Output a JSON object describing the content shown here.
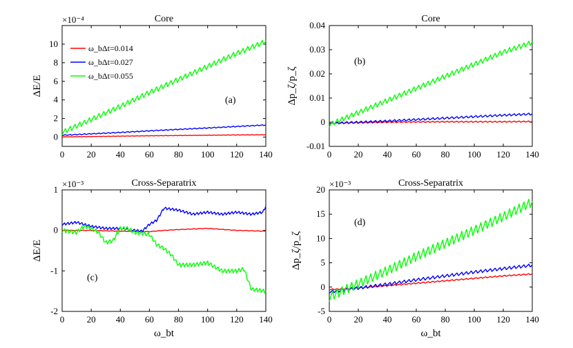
{
  "colors": {
    "red": "#ff0000",
    "blue": "#0000ff",
    "green": "#00ff00"
  },
  "chart_data": [
    {
      "type": "line",
      "title": "Core",
      "ylabel": "ΔE/E",
      "xlabel": "",
      "exponent": "×10⁻⁴",
      "annotation": "(a)",
      "xlim": [
        0,
        140
      ],
      "ylim": [
        -1,
        12
      ],
      "xticks": [
        0,
        20,
        40,
        60,
        80,
        100,
        120,
        140
      ],
      "yticks": [
        0,
        2,
        4,
        6,
        8,
        10
      ],
      "xtick_labels": [
        "0",
        "20",
        "40",
        "60",
        "80",
        "100",
        "120",
        "140"
      ],
      "ytick_labels": [
        "0",
        "2",
        "4",
        "6",
        "8",
        "10"
      ],
      "legend": [
        "ω_bΔt=0.014",
        "ω_bΔt=0.027",
        "ω_bΔt=0.055"
      ],
      "series": [
        {
          "name": "ω_bΔt=0.014",
          "color": "#ff0000",
          "points": [
            [
              0,
              0.02
            ],
            [
              20,
              0.06
            ],
            [
              40,
              0.1
            ],
            [
              60,
              0.14
            ],
            [
              80,
              0.17
            ],
            [
              100,
              0.2
            ],
            [
              120,
              0.23
            ],
            [
              140,
              0.25
            ]
          ],
          "osc_amp": 0.03,
          "osc_period": 3.3
        },
        {
          "name": "ω_bΔt=0.027",
          "color": "#0000ff",
          "points": [
            [
              0,
              0.2
            ],
            [
              20,
              0.35
            ],
            [
              40,
              0.5
            ],
            [
              60,
              0.67
            ],
            [
              80,
              0.83
            ],
            [
              100,
              0.98
            ],
            [
              120,
              1.14
            ],
            [
              140,
              1.3
            ]
          ],
          "osc_amp": 0.08,
          "osc_period": 3.3
        },
        {
          "name": "ω_bΔt=0.055",
          "color": "#00ff00",
          "points": [
            [
              0,
              0.5
            ],
            [
              20,
              1.9
            ],
            [
              40,
              3.3
            ],
            [
              60,
              4.8
            ],
            [
              80,
              6.2
            ],
            [
              100,
              7.6
            ],
            [
              120,
              9.0
            ],
            [
              140,
              10.3
            ]
          ],
          "osc_amp": 0.45,
          "osc_period": 3.3
        }
      ]
    },
    {
      "type": "line",
      "title": "Core",
      "ylabel": "Δp_ζ/p_ζ",
      "xlabel": "",
      "exponent": "",
      "annotation": "(b)",
      "xlim": [
        0,
        140
      ],
      "ylim": [
        -0.01,
        0.04
      ],
      "xticks": [
        0,
        20,
        40,
        60,
        80,
        100,
        120,
        140
      ],
      "yticks": [
        -0.01,
        0,
        0.01,
        0.02,
        0.03,
        0.04
      ],
      "xtick_labels": [
        "0",
        "20",
        "40",
        "60",
        "80",
        "100",
        "120",
        "140"
      ],
      "ytick_labels": [
        "-0.01",
        "0",
        "0.01",
        "0.02",
        "0.03",
        "0.04"
      ],
      "series": [
        {
          "name": "ω_bΔt=0.014",
          "color": "#ff0000",
          "points": [
            [
              0,
              -0.0005
            ],
            [
              20,
              -0.0002
            ],
            [
              40,
              0.0
            ],
            [
              60,
              0.0001
            ],
            [
              80,
              0.0002
            ],
            [
              100,
              0.0002
            ],
            [
              120,
              0.0002
            ],
            [
              140,
              0.0003
            ]
          ],
          "osc_amp": 0.0004,
          "osc_period": 3.3
        },
        {
          "name": "ω_bΔt=0.027",
          "color": "#0000ff",
          "points": [
            [
              0,
              -0.0004
            ],
            [
              20,
              0.0
            ],
            [
              40,
              0.0005
            ],
            [
              60,
              0.0011
            ],
            [
              80,
              0.0017
            ],
            [
              100,
              0.0023
            ],
            [
              120,
              0.0029
            ],
            [
              140,
              0.0034
            ]
          ],
          "osc_amp": 0.0007,
          "osc_period": 3.3
        },
        {
          "name": "ω_bΔt=0.055",
          "color": "#00ff00",
          "points": [
            [
              0,
              -0.001
            ],
            [
              20,
              0.004
            ],
            [
              40,
              0.009
            ],
            [
              60,
              0.014
            ],
            [
              80,
              0.019
            ],
            [
              100,
              0.024
            ],
            [
              120,
              0.029
            ],
            [
              140,
              0.033
            ]
          ],
          "osc_amp": 0.0017,
          "osc_period": 3.3
        }
      ]
    },
    {
      "type": "line",
      "title": "Cross-Separatrix",
      "ylabel": "ΔE/E",
      "xlabel": "ω_bt",
      "exponent": "×10⁻³",
      "annotation": "(c)",
      "xlim": [
        0,
        140
      ],
      "ylim": [
        -2,
        1
      ],
      "xticks": [
        0,
        20,
        40,
        60,
        80,
        100,
        120,
        140
      ],
      "yticks": [
        -2,
        -1,
        0,
        1
      ],
      "xtick_labels": [
        "0",
        "20",
        "40",
        "60",
        "80",
        "100",
        "120",
        "140"
      ],
      "ytick_labels": [
        "-2",
        "-1",
        "0",
        "1"
      ],
      "series": [
        {
          "name": "ω_bΔt=0.014",
          "color": "#ff0000",
          "points": [
            [
              0,
              0.0
            ],
            [
              20,
              0.0
            ],
            [
              40,
              -0.02
            ],
            [
              60,
              -0.03
            ],
            [
              70,
              0.0
            ],
            [
              80,
              0.02
            ],
            [
              100,
              0.05
            ],
            [
              120,
              0.0
            ],
            [
              140,
              -0.02
            ]
          ],
          "osc_amp": 0.01,
          "osc_period": 4.0
        },
        {
          "name": "ω_bΔt=0.027",
          "color": "#0000ff",
          "points": [
            [
              0,
              0.15
            ],
            [
              10,
              0.2
            ],
            [
              20,
              0.1
            ],
            [
              30,
              0.05
            ],
            [
              40,
              0.05
            ],
            [
              50,
              0.0
            ],
            [
              55,
              -0.02
            ],
            [
              60,
              0.15
            ],
            [
              65,
              0.25
            ],
            [
              70,
              0.55
            ],
            [
              80,
              0.5
            ],
            [
              90,
              0.4
            ],
            [
              100,
              0.45
            ],
            [
              110,
              0.4
            ],
            [
              120,
              0.45
            ],
            [
              130,
              0.4
            ],
            [
              138,
              0.45
            ],
            [
              140,
              0.6
            ]
          ],
          "osc_amp": 0.05,
          "osc_period": 2.4
        },
        {
          "name": "ω_bΔt=0.055",
          "color": "#00ff00",
          "points": [
            [
              0,
              0.0
            ],
            [
              10,
              -0.05
            ],
            [
              15,
              0.1
            ],
            [
              20,
              0.05
            ],
            [
              25,
              -0.05
            ],
            [
              30,
              -0.3
            ],
            [
              35,
              -0.25
            ],
            [
              40,
              0.05
            ],
            [
              45,
              0.05
            ],
            [
              50,
              -0.05
            ],
            [
              60,
              -0.1
            ],
            [
              65,
              -0.35
            ],
            [
              70,
              -0.45
            ],
            [
              75,
              -0.6
            ],
            [
              80,
              -0.85
            ],
            [
              90,
              -0.85
            ],
            [
              100,
              -0.8
            ],
            [
              110,
              -1.0
            ],
            [
              120,
              -1.0
            ],
            [
              125,
              -0.95
            ],
            [
              130,
              -1.45
            ],
            [
              140,
              -1.5
            ]
          ],
          "osc_amp": 0.08,
          "osc_period": 2.4
        }
      ]
    },
    {
      "type": "line",
      "title": "Cross-Separatrix",
      "ylabel": "Δp_ζ/p_ζ",
      "xlabel": "ω_bt",
      "exponent": "×10⁻³",
      "annotation": "(d)",
      "xlim": [
        0,
        140
      ],
      "ylim": [
        -5,
        20
      ],
      "xticks": [
        0,
        20,
        40,
        60,
        80,
        100,
        120,
        140
      ],
      "yticks": [
        -5,
        0,
        5,
        10,
        15,
        20
      ],
      "xtick_labels": [
        "0",
        "20",
        "40",
        "60",
        "80",
        "100",
        "120",
        "140"
      ],
      "ytick_labels": [
        "-5",
        "0",
        "5",
        "10",
        "15",
        "20"
      ],
      "series": [
        {
          "name": "ω_bΔt=0.014",
          "color": "#ff0000",
          "points": [
            [
              0,
              -0.5
            ],
            [
              20,
              -0.2
            ],
            [
              40,
              0.3
            ],
            [
              60,
              0.8
            ],
            [
              80,
              1.3
            ],
            [
              100,
              1.8
            ],
            [
              120,
              2.3
            ],
            [
              140,
              2.7
            ]
          ],
          "osc_amp": 0.2,
          "osc_period": 3.3
        },
        {
          "name": "ω_bΔt=0.027",
          "color": "#0000ff",
          "points": [
            [
              0,
              -1.0
            ],
            [
              20,
              -0.2
            ],
            [
              40,
              0.6
            ],
            [
              60,
              1.5
            ],
            [
              80,
              2.3
            ],
            [
              100,
              3.1
            ],
            [
              120,
              3.8
            ],
            [
              140,
              4.5
            ]
          ],
          "osc_amp": 0.5,
          "osc_period": 3.3
        },
        {
          "name": "ω_bΔt=0.055",
          "color": "#00ff00",
          "points": [
            [
              0,
              -2.0
            ],
            [
              20,
              0.7
            ],
            [
              40,
              3.4
            ],
            [
              60,
              6.3
            ],
            [
              80,
              9.0
            ],
            [
              100,
              11.7
            ],
            [
              120,
              14.5
            ],
            [
              140,
              17.5
            ]
          ],
          "osc_amp": 1.6,
          "osc_period": 3.3
        }
      ]
    }
  ]
}
